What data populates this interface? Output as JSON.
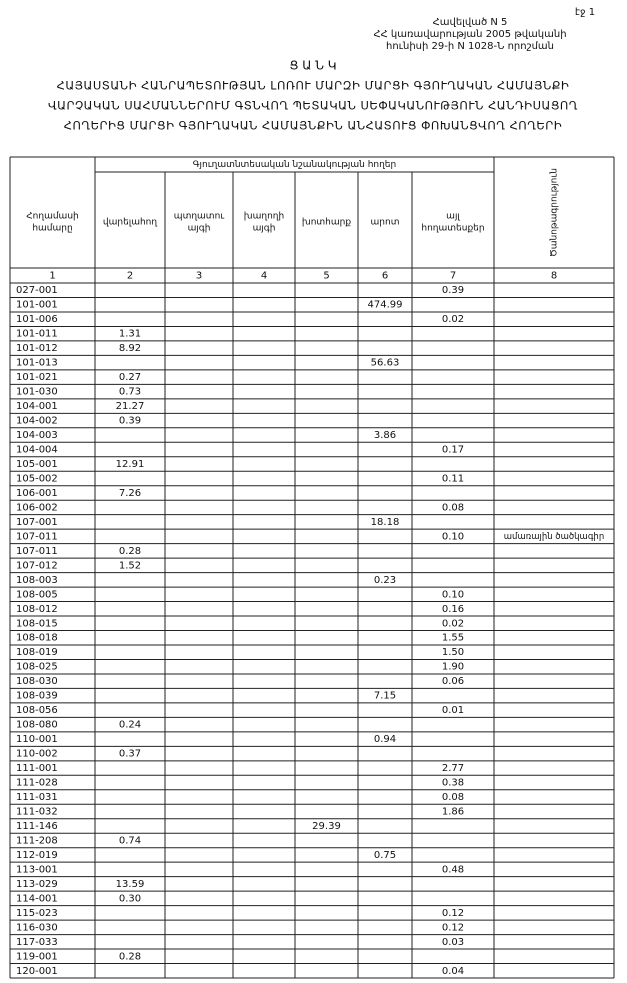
{
  "header": {
    "page": "էջ 1",
    "appendix": "Հավելված N 5",
    "decree_line1": "ՀՀ կառավարության 2005 թվականի",
    "decree_line2": "հունիսի 29-ի N 1028-Ն որոշման"
  },
  "title": "Ց Ա Ն Կ",
  "subtitle": [
    "ՀԱՅԱՍՏԱՆԻ ՀԱՆՐԱՊԵՏՈՒԹՅԱՆ ԼՈՌՈՒ ՄԱՐԶԻ ՄԱՐՑԻ ԳՅՈՒՂԱԿԱՆ ՀԱՄԱՅՆՔԻ",
    "ՎԱՐՉԱԿԱՆ ՍԱՀՄԱՆՆԵՐՈՒՄ ԳՏՆՎՈՂ ՊԵՏԱԿԱՆ ՍԵՓԱԿԱՆՈՒԹՅՈՒՆ ՀԱՆԴԻՍԱՑՈՂ",
    "ՀՈՂԵՐԻՑ ՄԱՐՑԻ ԳՅՈՒՂԱԿԱՆ ՀԱՄԱՅՆՔԻՆ ԱՆՀԱՏՈՒՑ ՓՈԽԱՆՑՎՈՂ ՀՈՂԵՐԻ"
  ],
  "table": {
    "group_header": "Գյուղատնտեսական նշանակության հողեր",
    "headers": {
      "parcel": [
        "Հողամասի",
        "համարը"
      ],
      "arable": [
        "վարելահող"
      ],
      "orchard": [
        "պտղատու",
        "այգի"
      ],
      "vineyard": [
        "խաղողի",
        "այգի"
      ],
      "hayfield": [
        "խոտհարք"
      ],
      "pasture": [
        "արոտ"
      ],
      "other": [
        "այլ",
        "հողատեսքեր"
      ],
      "note": [
        "Ծանոթագրություն"
      ]
    },
    "column_numbers": [
      "1",
      "2",
      "3",
      "4",
      "5",
      "6",
      "7",
      "8"
    ],
    "rows": [
      {
        "parcel": "027-001",
        "other": "0.39"
      },
      {
        "parcel": "101-001",
        "pasture": "474.99"
      },
      {
        "parcel": "101-006",
        "other": "0.02"
      },
      {
        "parcel": "101-011",
        "arable": "1.31"
      },
      {
        "parcel": "101-012",
        "arable": "8.92"
      },
      {
        "parcel": "101-013",
        "pasture": "56.63"
      },
      {
        "parcel": "101-021",
        "arable": "0.27"
      },
      {
        "parcel": "101-030",
        "arable": "0.73"
      },
      {
        "parcel": "104-001",
        "arable": "21.27"
      },
      {
        "parcel": "104-002",
        "arable": "0.39"
      },
      {
        "parcel": "104-003",
        "pasture": "3.86"
      },
      {
        "parcel": "104-004",
        "other": "0.17"
      },
      {
        "parcel": "105-001",
        "arable": "12.91"
      },
      {
        "parcel": "105-002",
        "other": "0.11"
      },
      {
        "parcel": "106-001",
        "arable": "7.26"
      },
      {
        "parcel": "106-002",
        "other": "0.08"
      },
      {
        "parcel": "107-001",
        "pasture": "18.18"
      },
      {
        "parcel": "107-011",
        "other": "0.10",
        "note": "ամառային ծածկագիր"
      },
      {
        "parcel": "107-011",
        "arable": "0.28"
      },
      {
        "parcel": "107-012",
        "arable": "1.52"
      },
      {
        "parcel": "108-003",
        "pasture": "0.23"
      },
      {
        "parcel": "108-005",
        "other": "0.10"
      },
      {
        "parcel": "108-012",
        "other": "0.16"
      },
      {
        "parcel": "108-015",
        "other": "0.02"
      },
      {
        "parcel": "108-018",
        "other": "1.55"
      },
      {
        "parcel": "108-019",
        "other": "1.50"
      },
      {
        "parcel": "108-025",
        "other": "1.90"
      },
      {
        "parcel": "108-030",
        "other": "0.06"
      },
      {
        "parcel": "108-039",
        "pasture": "7.15"
      },
      {
        "parcel": "108-056",
        "other": "0.01"
      },
      {
        "parcel": "108-080",
        "arable": "0.24"
      },
      {
        "parcel": "110-001",
        "pasture": "0.94"
      },
      {
        "parcel": "110-002",
        "arable": "0.37"
      },
      {
        "parcel": "111-001",
        "other": "2.77"
      },
      {
        "parcel": "111-028",
        "other": "0.38"
      },
      {
        "parcel": "111-031",
        "other": "0.08"
      },
      {
        "parcel": "111-032",
        "other": "1.86"
      },
      {
        "parcel": "111-146",
        "hayfield": "29.39"
      },
      {
        "parcel": "111-208",
        "arable": "0.74"
      },
      {
        "parcel": "112-019",
        "pasture": "0.75"
      },
      {
        "parcel": "113-001",
        "other": "0.48"
      },
      {
        "parcel": "113-029",
        "arable": "13.59"
      },
      {
        "parcel": "114-001",
        "arable": "0.30"
      },
      {
        "parcel": "115-023",
        "other": "0.12"
      },
      {
        "parcel": "116-030",
        "other": "0.12"
      },
      {
        "parcel": "117-033",
        "other": "0.03"
      },
      {
        "parcel": "119-001",
        "arable": "0.28"
      },
      {
        "parcel": "120-001",
        "other": "0.04"
      }
    ]
  }
}
